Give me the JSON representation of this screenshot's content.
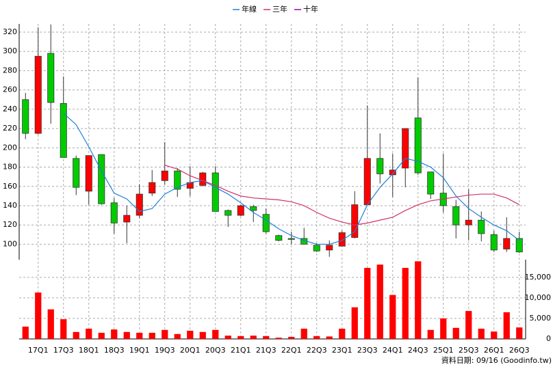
{
  "chart_data": {
    "type": "candlestick",
    "categories": [
      null,
      "17Q1",
      null,
      "17Q3",
      null,
      "18Q1",
      null,
      "18Q3",
      null,
      "19Q1",
      null,
      "19Q3",
      null,
      "20Q1",
      null,
      "20Q3",
      null,
      "21Q1",
      null,
      "21Q3",
      null,
      "22Q1",
      null,
      "22Q3",
      null,
      "23Q1",
      null,
      "23Q3",
      null,
      "24Q1",
      null,
      "24Q3",
      null,
      "25Q1",
      null,
      "25Q3",
      null,
      "26Q1",
      null,
      "26Q3"
    ],
    "open": [
      250,
      215,
      298,
      246,
      189,
      155,
      193,
      143,
      123,
      130,
      153,
      166,
      176,
      158,
      161,
      174,
      135,
      130,
      139,
      131,
      109,
      106,
      106,
      99,
      94,
      98,
      107,
      141,
      189,
      172,
      179,
      231,
      175,
      153,
      139,
      120,
      125,
      110,
      95,
      106
    ],
    "high": [
      257,
      325,
      328,
      274,
      192,
      192,
      193,
      148,
      140,
      162,
      177,
      206,
      179,
      181,
      175,
      181,
      136,
      141,
      141,
      137,
      110,
      113,
      117,
      101,
      104,
      114,
      155,
      244,
      215,
      194,
      220,
      273,
      175,
      194,
      146,
      157,
      134,
      114,
      128,
      113
    ],
    "low": [
      209,
      214,
      225,
      190,
      151,
      141,
      141,
      111,
      101,
      127,
      150,
      162,
      149,
      150,
      160,
      134,
      118,
      129,
      123,
      111,
      103,
      100,
      100,
      92,
      87,
      98,
      106,
      141,
      163,
      149,
      159,
      172,
      147,
      133,
      106,
      104,
      103,
      92,
      92,
      91
    ],
    "close": [
      215,
      295,
      247,
      190,
      159,
      192,
      142,
      122,
      130,
      152,
      164,
      176,
      157,
      164,
      174,
      134,
      130,
      140,
      135,
      113,
      104,
      105,
      100,
      93,
      99,
      112,
      141,
      189,
      173,
      177,
      220,
      174,
      152,
      140,
      120,
      125,
      111,
      94,
      106,
      92
    ],
    "up_color": "#ff0000",
    "down_color": "#00cc00",
    "series": [
      {
        "name": "年線",
        "color": "#1e7fd8",
        "values": [
          null,
          null,
          null,
          236,
          224,
          201,
          176,
          153,
          147,
          134,
          137,
          152,
          159,
          164,
          166,
          159,
          152,
          143,
          133,
          125,
          116,
          109,
          104,
          100,
          100,
          104,
          113,
          141,
          159,
          173,
          189,
          186,
          180,
          169,
          150,
          137,
          128,
          120,
          114,
          104
        ]
      },
      {
        "name": "三年",
        "color": "#d0306a",
        "values": [
          null,
          null,
          null,
          null,
          null,
          null,
          null,
          null,
          null,
          null,
          null,
          182,
          178,
          171,
          166,
          161,
          155,
          150,
          148,
          147,
          146,
          144,
          140,
          133,
          127,
          123,
          120,
          122,
          125,
          128,
          135,
          141,
          145,
          147,
          149,
          151,
          152,
          152,
          148,
          141
        ]
      },
      {
        "name": "十年",
        "color": "#a000a0"
      }
    ],
    "volume": {
      "color": "#ff0000",
      "values": [
        3000,
        11300,
        7200,
        4800,
        1700,
        2500,
        1500,
        2300,
        1700,
        1500,
        1500,
        2200,
        1200,
        2000,
        1700,
        2200,
        800,
        700,
        800,
        700,
        300,
        500,
        2500,
        700,
        600,
        2500,
        7700,
        17300,
        18100,
        10700,
        17300,
        18900,
        2200,
        5000,
        2700,
        6800,
        2500,
        1800,
        6500,
        2800
      ]
    },
    "ylim": [
      84,
      328.5
    ],
    "yticks": [
      100,
      120,
      140,
      160,
      180,
      200,
      220,
      240,
      260,
      280,
      300,
      320
    ],
    "y2lim": [
      0,
      19300
    ],
    "y2ticks": [
      0,
      {
        "value": 5000,
        "label": "5,000"
      },
      {
        "value": 10000,
        "label": "10,000"
      },
      {
        "value": 15000,
        "label": "15,000"
      }
    ],
    "grid": true,
    "source": "資料日期: 09/16  (Goodinfo.tw)"
  }
}
